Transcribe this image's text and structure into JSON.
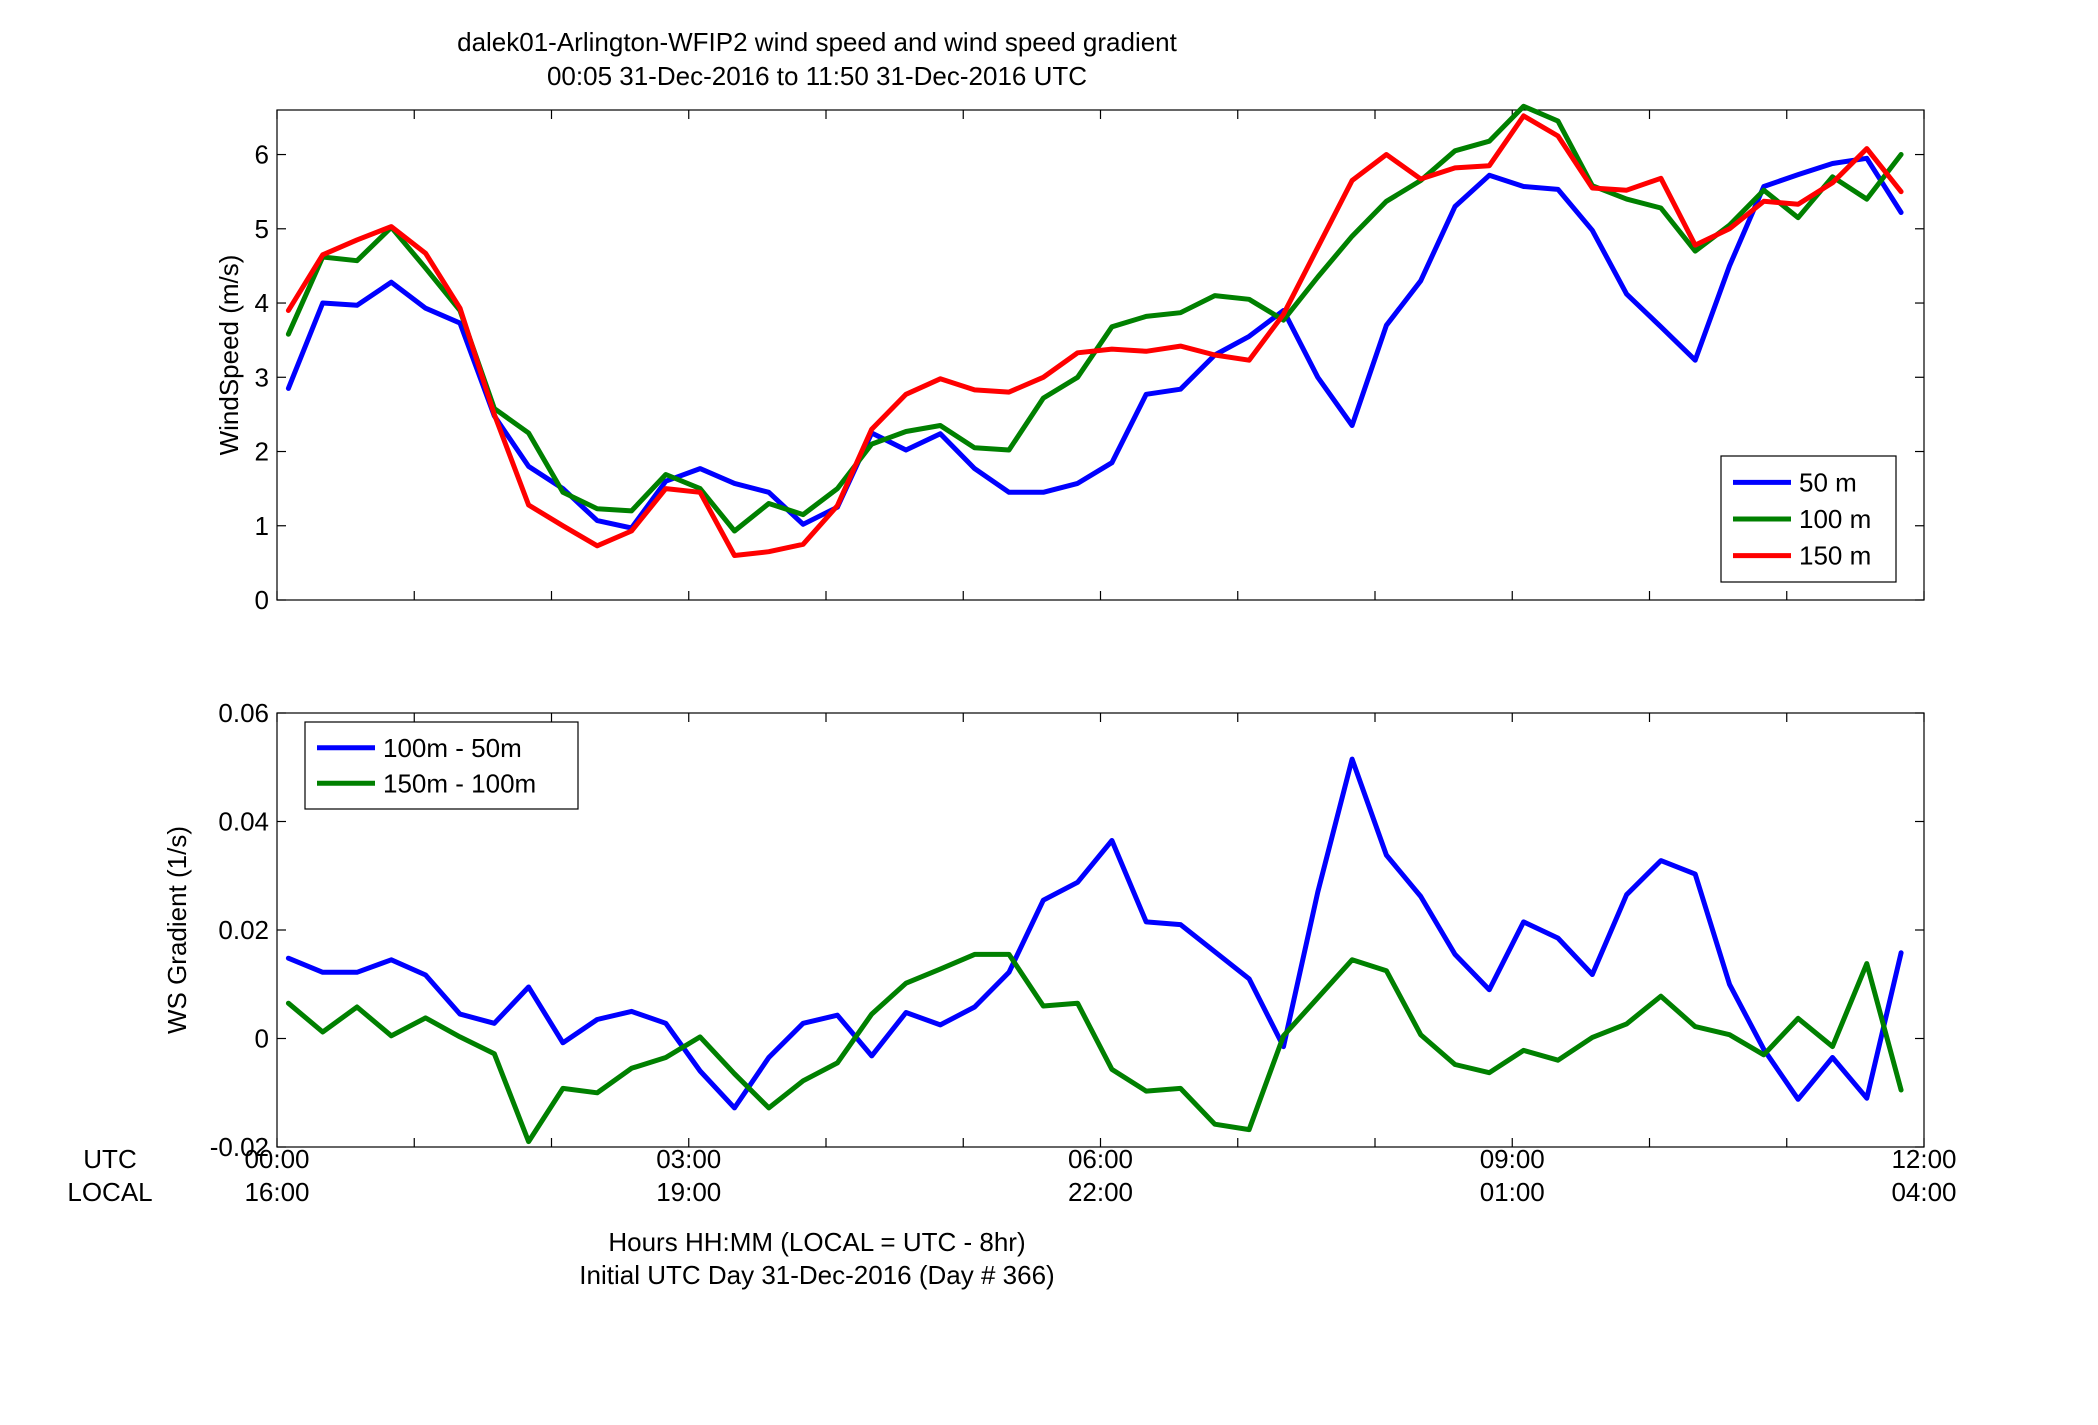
{
  "figure": {
    "title_line1": "dalek01-Arlington-WFIP2  wind speed and wind speed gradient",
    "title_line2": "00:05 31-Dec-2016 to 11:50 31-Dec-2016  UTC",
    "xlabel_line1": "Hours HH:MM  (LOCAL = UTC - 8hr)",
    "xlabel_line2": "Initial UTC Day 31-Dec-2016 (Day # 366)",
    "utc_label": "UTC",
    "local_label": "LOCAL",
    "x_ticks_utc": [
      "00:00",
      "03:00",
      "06:00",
      "09:00",
      "12:00"
    ],
    "x_ticks_local": [
      "16:00",
      "19:00",
      "22:00",
      "01:00",
      "04:00"
    ]
  },
  "chart_data": [
    {
      "type": "line",
      "ylabel": "WindSpeed (m/s)",
      "xlim": [
        0,
        12
      ],
      "ylim": [
        0,
        6.6
      ],
      "yticks": [
        0,
        1,
        2,
        3,
        4,
        5,
        6
      ],
      "ytick_labels": [
        "0",
        "1",
        "2",
        "3",
        "4",
        "5",
        "6"
      ],
      "legend_position": "bottom-right",
      "x": [
        0.083,
        0.333,
        0.583,
        0.833,
        1.083,
        1.333,
        1.583,
        1.833,
        2.083,
        2.333,
        2.583,
        2.833,
        3.083,
        3.333,
        3.583,
        3.833,
        4.083,
        4.333,
        4.583,
        4.833,
        5.083,
        5.333,
        5.583,
        5.833,
        6.083,
        6.333,
        6.583,
        6.833,
        7.083,
        7.333,
        7.583,
        7.833,
        8.083,
        8.333,
        8.583,
        8.833,
        9.083,
        9.333,
        9.583,
        9.833,
        10.083,
        10.333,
        10.583,
        10.833,
        11.083,
        11.333,
        11.583,
        11.833
      ],
      "series": [
        {
          "name": "50 m",
          "color": "#0000ff",
          "values": [
            2.85,
            4.0,
            3.97,
            4.28,
            3.93,
            3.73,
            2.48,
            1.8,
            1.5,
            1.07,
            0.97,
            1.6,
            1.77,
            1.57,
            1.45,
            1.02,
            1.25,
            2.25,
            2.02,
            2.24,
            1.77,
            1.45,
            1.45,
            1.57,
            1.85,
            2.77,
            2.84,
            3.3,
            3.55,
            3.9,
            3.0,
            2.35,
            3.7,
            4.3,
            5.3,
            5.72,
            5.57,
            5.53,
            4.98,
            4.12,
            3.68,
            3.23,
            4.5,
            5.57,
            5.73,
            5.88,
            5.95,
            5.22
          ]
        },
        {
          "name": "100 m",
          "color": "#008000",
          "values": [
            3.58,
            4.62,
            4.57,
            5.02,
            4.47,
            3.9,
            2.58,
            2.25,
            1.45,
            1.23,
            1.2,
            1.69,
            1.5,
            0.93,
            1.3,
            1.15,
            1.5,
            2.1,
            2.27,
            2.35,
            2.05,
            2.02,
            2.72,
            3.0,
            3.68,
            3.82,
            3.87,
            4.1,
            4.05,
            3.77,
            4.35,
            4.9,
            5.37,
            5.65,
            6.05,
            6.18,
            6.65,
            6.45,
            5.58,
            5.4,
            5.28,
            4.7,
            5.05,
            5.52,
            5.15,
            5.7,
            5.4,
            6.0
          ]
        },
        {
          "name": "150 m",
          "color": "#ff0000",
          "values": [
            3.9,
            4.65,
            4.85,
            5.03,
            4.67,
            3.93,
            2.5,
            1.28,
            1.0,
            0.73,
            0.93,
            1.5,
            1.45,
            0.6,
            0.65,
            0.75,
            1.27,
            2.3,
            2.77,
            2.98,
            2.83,
            2.8,
            3.0,
            3.33,
            3.38,
            3.35,
            3.42,
            3.3,
            3.23,
            3.85,
            4.75,
            5.65,
            6.0,
            5.67,
            5.82,
            5.85,
            6.52,
            6.25,
            5.55,
            5.52,
            5.68,
            4.78,
            5.0,
            5.37,
            5.33,
            5.62,
            6.08,
            5.5
          ]
        }
      ]
    },
    {
      "type": "line",
      "ylabel": "WS Gradient (1/s)",
      "xlim": [
        0,
        12
      ],
      "ylim": [
        -0.02,
        0.06
      ],
      "yticks": [
        -0.02,
        0,
        0.02,
        0.04,
        0.06
      ],
      "ytick_labels": [
        "-0.02",
        "0",
        "0.02",
        "0.04",
        "0.06"
      ],
      "legend_position": "top-left",
      "x": [
        0.083,
        0.333,
        0.583,
        0.833,
        1.083,
        1.333,
        1.583,
        1.833,
        2.083,
        2.333,
        2.583,
        2.833,
        3.083,
        3.333,
        3.583,
        3.833,
        4.083,
        4.333,
        4.583,
        4.833,
        5.083,
        5.333,
        5.583,
        5.833,
        6.083,
        6.333,
        6.583,
        6.833,
        7.083,
        7.333,
        7.583,
        7.833,
        8.083,
        8.333,
        8.583,
        8.833,
        9.083,
        9.333,
        9.583,
        9.833,
        10.083,
        10.333,
        10.583,
        10.833,
        11.083,
        11.333,
        11.583,
        11.833
      ],
      "series": [
        {
          "name": "100m - 50m",
          "color": "#0000ff",
          "values": [
            0.0148,
            0.0122,
            0.0122,
            0.0145,
            0.0117,
            0.0045,
            0.0028,
            0.0095,
            -0.0008,
            0.0035,
            0.005,
            0.0028,
            -0.006,
            -0.0128,
            -0.0035,
            0.0028,
            0.0043,
            -0.0032,
            0.0048,
            0.0025,
            0.0058,
            0.0122,
            0.0255,
            0.0288,
            0.0365,
            0.0215,
            0.021,
            0.016,
            0.011,
            -0.0015,
            0.027,
            0.0515,
            0.0338,
            0.0262,
            0.0155,
            0.009,
            0.0215,
            0.0185,
            0.0118,
            0.0265,
            0.0328,
            0.0303,
            0.01,
            -0.002,
            -0.0112,
            -0.0035,
            -0.011,
            0.0158
          ]
        },
        {
          "name": "150m - 100m",
          "color": "#008000",
          "values": [
            0.0065,
            0.0012,
            0.0058,
            0.0005,
            0.0038,
            0.0003,
            -0.0028,
            -0.019,
            -0.0092,
            -0.01,
            -0.0055,
            -0.0035,
            0.0003,
            -0.0065,
            -0.0128,
            -0.0078,
            -0.0045,
            0.0045,
            0.0102,
            0.0128,
            0.0155,
            0.0155,
            0.006,
            0.0065,
            -0.0057,
            -0.0097,
            -0.0092,
            -0.0158,
            -0.0168,
            0.0005,
            0.0075,
            0.0145,
            0.0125,
            0.0007,
            -0.0048,
            -0.0063,
            -0.0022,
            -0.004,
            0.0002,
            0.0027,
            0.0078,
            0.0022,
            0.0007,
            -0.003,
            0.0037,
            -0.0015,
            0.0138,
            -0.0095
          ]
        }
      ]
    }
  ]
}
